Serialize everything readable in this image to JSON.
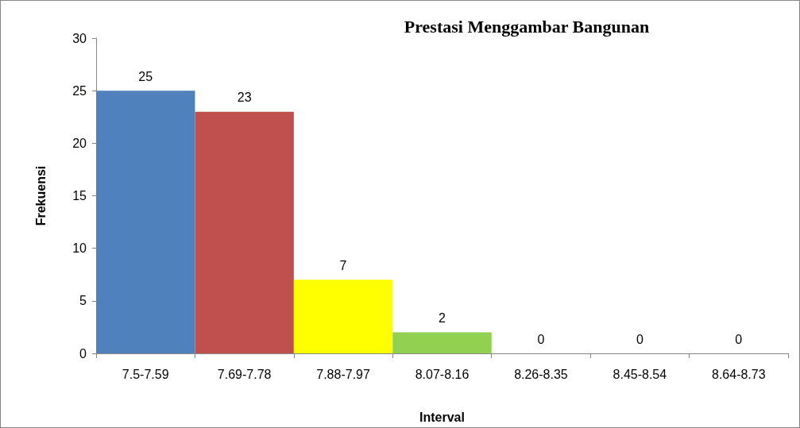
{
  "chart_data": {
    "type": "bar",
    "title": "Prestasi Menggambar Bangunan",
    "xlabel": "Interval",
    "ylabel": "Frekuensi",
    "categories": [
      "7.5-7.59",
      "7.69-7.78",
      "7.88-7.97",
      "8.07-8.16",
      "8.26-8.35",
      "8.45-8.54",
      "8.64-8.73"
    ],
    "values": [
      25,
      23,
      7,
      2,
      0,
      0,
      0
    ],
    "colors": [
      "#4f81bd",
      "#c0504d",
      "#ffff00",
      "#92d050",
      "#8064a2",
      "#4bacc6",
      "#f79646"
    ],
    "ylim": [
      0,
      30
    ],
    "yticks": [
      0,
      5,
      10,
      15,
      20,
      25,
      30
    ],
    "grid": false,
    "data_labels": true
  }
}
